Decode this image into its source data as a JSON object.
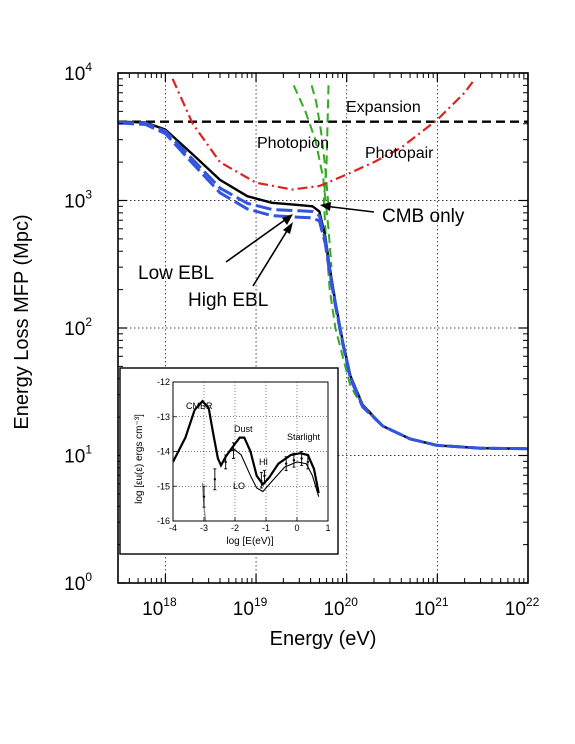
{
  "chart_data": [
    {
      "type": "line",
      "title": "",
      "xlabel": "Energy (eV)",
      "ylabel": "Energy Loss MFP (Mpc)",
      "x_scale": "log",
      "y_scale": "log",
      "xlim": [
        3e+17,
        1e+22
      ],
      "ylim": [
        1,
        10000
      ],
      "x_ticks": [
        {
          "base": "10",
          "exp": "18",
          "value": 1e+18
        },
        {
          "base": "10",
          "exp": "19",
          "value": 1e+19
        },
        {
          "base": "10",
          "exp": "20",
          "value": 1e+20
        },
        {
          "base": "10",
          "exp": "21",
          "value": 1e+21
        },
        {
          "base": "10",
          "exp": "22",
          "value": 1e+22
        }
      ],
      "y_ticks": [
        {
          "base": "10",
          "exp": "0",
          "value": 1
        },
        {
          "base": "10",
          "exp": "1",
          "value": 10
        },
        {
          "base": "10",
          "exp": "2",
          "value": 100
        },
        {
          "base": "10",
          "exp": "3",
          "value": 1000
        },
        {
          "base": "10",
          "exp": "4",
          "value": 10000
        }
      ],
      "grid": true,
      "series": [
        {
          "name": "Expansion",
          "color": "#000000",
          "style": "dashed",
          "points": [
            [
              3e+17,
              4150
            ],
            [
              1e+22,
              4150
            ]
          ]
        },
        {
          "name": "Photopion",
          "color": "#33aa22",
          "style": "dashed",
          "points": [
            [
              6.3e+19,
              8000
            ],
            [
              6e+19,
              2000
            ],
            [
              5.6e+19,
              1000
            ],
            [
              5.9e+19,
              500
            ],
            [
              6.5e+19,
              200
            ],
            [
              7.5e+19,
              100
            ],
            [
              9e+19,
              60
            ],
            [
              1.1e+20,
              35
            ],
            [
              1.5e+20,
              24
            ],
            [
              2.5e+20,
              17
            ],
            [
              5e+20,
              13.5
            ],
            [
              1e+21,
              12
            ],
            [
              3e+21,
              11.4
            ],
            [
              1e+22,
              11.3
            ]
          ]
        },
        {
          "name": "Photopion",
          "color": "#33aa22",
          "style": "dashed",
          "points": [
            [
              2.6e+19,
              8000
            ],
            [
              3.5e+19,
              5000
            ],
            [
              4.5e+19,
              3000
            ],
            [
              5.5e+19,
              1500
            ],
            [
              6.3e+19,
              600
            ],
            [
              6.8e+19,
              300
            ]
          ]
        },
        {
          "name": "Photopion",
          "color": "#33aa22",
          "style": "dashed",
          "points": [
            [
              4.1e+19,
              8000
            ],
            [
              4.6e+19,
              6000
            ],
            [
              5.2e+19,
              3500
            ],
            [
              5.8e+19,
              1800
            ],
            [
              6.3e+19,
              900
            ]
          ]
        },
        {
          "name": "Photopair",
          "color": "#dd2222",
          "style": "dashdot",
          "points": [
            [
              1.2e+18,
              9000
            ],
            [
              2e+18,
              4000
            ],
            [
              4e+18,
              2000
            ],
            [
              1e+19,
              1380
            ],
            [
              2.5e+19,
              1220
            ],
            [
              5e+19,
              1300
            ],
            [
              1e+20,
              1600
            ],
            [
              2e+20,
              2000
            ],
            [
              4e+20,
              2600
            ],
            [
              1e+21,
              4300
            ],
            [
              2e+21,
              7000
            ],
            [
              2.6e+21,
              9000
            ]
          ]
        },
        {
          "name": "CMB only",
          "color": "#000000",
          "style": "solid",
          "points": [
            [
              3e+17,
              4150
            ],
            [
              6e+17,
              4100
            ],
            [
              1e+18,
              3600
            ],
            [
              2e+18,
              2300
            ],
            [
              4e+18,
              1450
            ],
            [
              8e+18,
              1080
            ],
            [
              1.5e+19,
              960
            ],
            [
              3e+19,
              920
            ],
            [
              4.2e+19,
              900
            ],
            [
              5e+19,
              820
            ],
            [
              5.8e+19,
              520
            ],
            [
              6.5e+19,
              300
            ],
            [
              7.5e+19,
              160
            ],
            [
              9e+19,
              80
            ],
            [
              1.1e+20,
              42
            ],
            [
              1.5e+20,
              25
            ],
            [
              2.5e+20,
              17
            ],
            [
              5e+20,
              13.5
            ],
            [
              1e+21,
              12
            ],
            [
              3e+21,
              11.4
            ],
            [
              1e+22,
              11.3
            ]
          ]
        },
        {
          "name": "Low EBL",
          "color": "#3355dd",
          "style": "longdash",
          "points": [
            [
              3e+17,
              4100
            ],
            [
              6e+17,
              4050
            ],
            [
              1e+18,
              3500
            ],
            [
              2e+18,
              2100
            ],
            [
              4e+18,
              1250
            ],
            [
              8e+18,
              950
            ],
            [
              1.5e+19,
              850
            ],
            [
              3e+19,
              830
            ],
            [
              4.2e+19,
              820
            ],
            [
              5e+19,
              760
            ],
            [
              5.8e+19,
              490
            ],
            [
              6.5e+19,
              285
            ],
            [
              7.5e+19,
              155
            ],
            [
              9e+19,
              78
            ],
            [
              1.1e+20,
              41
            ],
            [
              1.5e+20,
              24.5
            ],
            [
              2.5e+20,
              17
            ],
            [
              5e+20,
              13.5
            ],
            [
              1e+21,
              12
            ],
            [
              3e+21,
              11.4
            ],
            [
              1e+22,
              11.3
            ]
          ]
        },
        {
          "name": "High EBL",
          "color": "#3355dd",
          "style": "longdash",
          "points": [
            [
              3e+17,
              4050
            ],
            [
              6e+17,
              3950
            ],
            [
              1e+18,
              3350
            ],
            [
              2e+18,
              1950
            ],
            [
              4e+18,
              1150
            ],
            [
              8e+18,
              860
            ],
            [
              1.5e+19,
              760
            ],
            [
              3e+19,
              740
            ],
            [
              4.2e+19,
              730
            ],
            [
              5e+19,
              690
            ],
            [
              5.8e+19,
              460
            ],
            [
              6.5e+19,
              270
            ],
            [
              7.5e+19,
              150
            ],
            [
              9e+19,
              76
            ],
            [
              1.1e+20,
              40
            ],
            [
              1.5e+20,
              24
            ],
            [
              2.5e+20,
              17
            ],
            [
              5e+20,
              13.5
            ],
            [
              1e+21,
              12
            ],
            [
              3e+21,
              11.4
            ],
            [
              1e+22,
              11.3
            ]
          ]
        }
      ],
      "annotations": [
        "Expansion",
        "Photopion",
        "Photopair",
        "CMB only",
        "Low EBL",
        "High EBL"
      ]
    },
    {
      "type": "line",
      "title": "",
      "xlabel": "log [E(eV)]",
      "ylabel": "log [εu(ε) ergs cm⁻³]",
      "xlim": [
        -4,
        1
      ],
      "ylim": [
        -16,
        -12
      ],
      "x_ticks": [
        "-4",
        "-3",
        "-2",
        "-1",
        "0",
        "1"
      ],
      "x_tick_values": [
        -4,
        -3,
        -2,
        -1,
        0,
        1
      ],
      "y_ticks": [
        "-12",
        "-13",
        "-14",
        "-15",
        "-16"
      ],
      "y_tick_values": [
        -12,
        -13,
        -14,
        -15,
        -16
      ],
      "grid": true,
      "labels": [
        "CMBR",
        "Dust",
        "Starlight",
        "HI",
        "LO"
      ],
      "series": [
        {
          "style": "solid-thick",
          "points": [
            [
              -4,
              -14.3
            ],
            [
              -3.6,
              -13.6
            ],
            [
              -3.3,
              -12.8
            ],
            [
              -3.05,
              -12.55
            ],
            [
              -2.85,
              -12.75
            ],
            [
              -2.7,
              -13.5
            ],
            [
              -2.55,
              -14.2
            ],
            [
              -2.45,
              -14.4
            ],
            [
              -2.3,
              -14.15
            ],
            [
              -2.1,
              -13.9
            ],
            [
              -1.85,
              -13.6
            ],
            [
              -1.7,
              -13.6
            ],
            [
              -1.5,
              -14.0
            ],
            [
              -1.3,
              -14.7
            ],
            [
              -1.1,
              -14.95
            ],
            [
              -0.9,
              -14.75
            ],
            [
              -0.6,
              -14.35
            ],
            [
              -0.2,
              -14.1
            ],
            [
              0.1,
              -14.05
            ],
            [
              0.35,
              -14.1
            ],
            [
              0.55,
              -14.5
            ],
            [
              0.7,
              -15.2
            ]
          ]
        },
        {
          "style": "solid-thin",
          "points": [
            [
              -2.2,
              -14.0
            ],
            [
              -2.0,
              -13.95
            ],
            [
              -1.8,
              -14.1
            ],
            [
              -1.5,
              -14.7
            ],
            [
              -1.3,
              -15.05
            ],
            [
              -1.1,
              -15.15
            ],
            [
              -0.8,
              -14.85
            ],
            [
              -0.4,
              -14.45
            ],
            [
              0.0,
              -14.3
            ],
            [
              0.3,
              -14.35
            ],
            [
              0.5,
              -14.7
            ],
            [
              0.7,
              -15.3
            ]
          ]
        },
        {
          "style": "solid-gray",
          "points": [
            [
              -3.05,
              -14.9
            ],
            [
              -3.0,
              -15.6
            ],
            [
              -2.95,
              -16.0
            ]
          ]
        }
      ],
      "error_bars": [
        {
          "x": -3.0,
          "y": -15.3,
          "lo": -15.6,
          "hi": -15.0
        },
        {
          "x": -2.65,
          "y": -14.8,
          "lo": -15.1,
          "hi": -14.5
        },
        {
          "x": -2.3,
          "y": -14.3,
          "lo": -14.5,
          "hi": -14.1
        },
        {
          "x": -2.05,
          "y": -13.95,
          "lo": -14.2,
          "hi": -13.75
        },
        {
          "x": -1.15,
          "y": -14.85,
          "lo": -15.05,
          "hi": -14.6
        },
        {
          "x": -1.05,
          "y": -14.7,
          "lo": -14.9,
          "hi": -14.55
        },
        {
          "x": -0.35,
          "y": -14.35,
          "lo": -14.55,
          "hi": -14.15
        },
        {
          "x": -0.1,
          "y": -14.25,
          "lo": -14.45,
          "hi": -14.05
        },
        {
          "x": 0.15,
          "y": -14.2,
          "lo": -14.4,
          "hi": -14.0
        },
        {
          "x": 0.35,
          "y": -14.3,
          "lo": -14.5,
          "hi": -14.1
        }
      ]
    }
  ]
}
